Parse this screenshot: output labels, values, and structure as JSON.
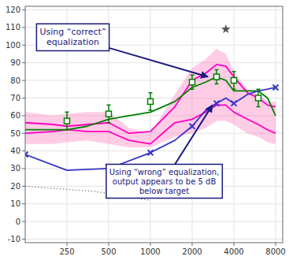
{
  "chart_data": {
    "type": "line",
    "log": "x",
    "grid": true,
    "xlim": [
      125,
      9000
    ],
    "ylim": [
      -12,
      122
    ],
    "xticks": [
      250,
      500,
      1000,
      2000,
      4000,
      8000
    ],
    "yticks": [
      -10,
      0,
      10,
      20,
      30,
      40,
      50,
      60,
      70,
      80,
      90,
      100,
      110,
      120
    ],
    "series": [
      {
        "type": "area",
        "color": "#ff80c0",
        "x": [
          125,
          200,
          250,
          350,
          500,
          700,
          1000,
          1500,
          2000,
          2500,
          3000,
          3500,
          4000,
          5000,
          6000,
          7000,
          8000
        ],
        "values": [
          62,
          60,
          61,
          62,
          62,
          53,
          50,
          72,
          87,
          92,
          98,
          95,
          85,
          75,
          72,
          68,
          68
        ],
        "lower": [
          44,
          44,
          45,
          46,
          44,
          42,
          42,
          48,
          50,
          53,
          57,
          57,
          55,
          50,
          48,
          45,
          44
        ]
      },
      {
        "type": "line",
        "color": "#ff00c0",
        "x": [
          125,
          200,
          250,
          350,
          500,
          700,
          1000,
          1500,
          2000,
          2500,
          3000,
          3500,
          4000,
          5000,
          6000,
          7000,
          8000
        ],
        "values": [
          56,
          55,
          54,
          55,
          56,
          50,
          51,
          65,
          80,
          84,
          89,
          88,
          82,
          73,
          70,
          66,
          65
        ]
      },
      {
        "type": "line",
        "color": "#ff00c0",
        "x": [
          125,
          200,
          250,
          350,
          500,
          700,
          1000,
          1500,
          2000,
          2500,
          3000,
          3500,
          4000,
          5000,
          6000,
          7000,
          8000
        ],
        "values": [
          50,
          51,
          52,
          51,
          51,
          46,
          44,
          56,
          58,
          62,
          66,
          66,
          62,
          58,
          55,
          52,
          50
        ]
      },
      {
        "type": "line",
        "color": "#008000",
        "x": [
          125,
          200,
          250,
          350,
          500,
          700,
          1000,
          1500,
          2000,
          2500,
          3000,
          3500,
          4000,
          5000,
          6000,
          7000,
          8000
        ],
        "values": [
          52,
          52,
          52,
          54,
          58,
          60,
          62,
          68,
          76,
          79,
          82,
          80,
          74,
          74,
          74,
          70,
          60
        ]
      },
      {
        "type": "line",
        "color": "#3535c8",
        "x": [
          125,
          250,
          500,
          1000,
          1500,
          2000,
          2500,
          3000,
          3500,
          4000,
          5000,
          6000,
          7000,
          8000
        ],
        "values": [
          38,
          29,
          30,
          39,
          46,
          54,
          63,
          67,
          70,
          67,
          72,
          74,
          75,
          76
        ]
      },
      {
        "type": "scatter",
        "color": "#3535c8",
        "marker": "x",
        "x": [
          125,
          500,
          1000,
          2000,
          3000,
          4000,
          8000
        ],
        "values": [
          38,
          30,
          39,
          54,
          67,
          67,
          76
        ]
      },
      {
        "type": "line",
        "color": "#888888",
        "line_style": "dotted",
        "x": [
          125,
          400,
          700,
          1000
        ],
        "values": [
          20,
          17,
          14,
          12
        ]
      },
      {
        "type": "scatter",
        "color": "#008000",
        "marker": "square",
        "x": [
          250,
          500,
          1000,
          2000,
          3000,
          4000,
          6000
        ],
        "values": [
          57,
          61,
          68,
          79,
          82,
          80,
          70
        ],
        "error": [
          5,
          5,
          5,
          4,
          4,
          5,
          5
        ]
      },
      {
        "type": "scatter",
        "color": "#555555",
        "marker": "star",
        "x": [
          3500
        ],
        "values": [
          109
        ]
      }
    ],
    "annotations": [
      {
        "text": "Using “correct”\nequalization",
        "x": 2600,
        "y": 82,
        "color": "#1a1a7e"
      },
      {
        "text": "Using “wrong” equalization,\noutput appears to be 5 dB\nbelow target",
        "x": 2800,
        "y": 66,
        "color": "#1a1a7e"
      }
    ]
  }
}
